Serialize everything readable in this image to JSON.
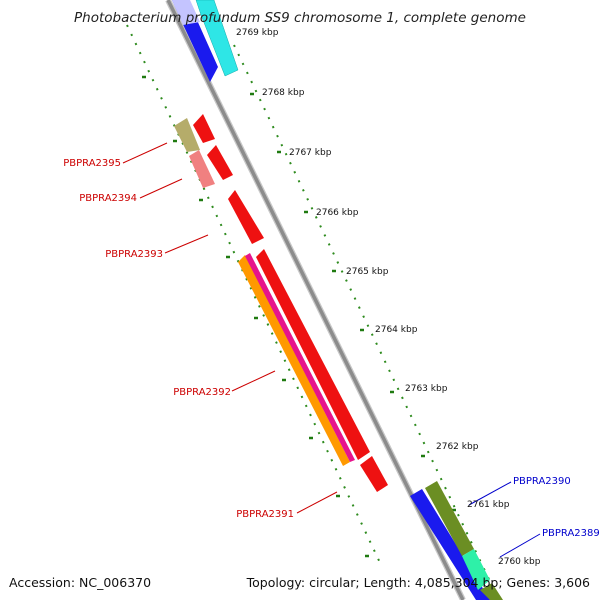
{
  "title": "Photobacterium profundum SS9 chromosome 1, complete genome",
  "accession": "Accession: NC_006370",
  "summary": "Topology: circular; Length: 4,085,304 bp; Genes: 3,606",
  "colors": {
    "backbone": "#8c8c8c",
    "tick_minor": "#2e8b1e",
    "tick_major": "#1f7a10",
    "label_left": "#cc0000",
    "label_right": "#0000cc"
  },
  "ruler": [
    {
      "label": "2769 kbp"
    },
    {
      "label": "2768 kbp"
    },
    {
      "label": "2767 kbp"
    },
    {
      "label": "2766 kbp"
    },
    {
      "label": "2765 kbp"
    },
    {
      "label": "2764 kbp"
    },
    {
      "label": "2763 kbp"
    },
    {
      "label": "2762 kbp"
    },
    {
      "label": "2761 kbp"
    },
    {
      "label": "2760 kbp"
    }
  ],
  "gene_labels": [
    {
      "id": "PBPRA2395",
      "text": "PBPRA2395",
      "side": "left"
    },
    {
      "id": "PBPRA2394",
      "text": "PBPRA2394",
      "side": "left"
    },
    {
      "id": "PBPRA2393",
      "text": "PBPRA2393",
      "side": "left"
    },
    {
      "id": "PBPRA2392",
      "text": "PBPRA2392",
      "side": "left"
    },
    {
      "id": "PBPRA2391",
      "text": "PBPRA2391",
      "side": "left"
    },
    {
      "id": "PBPRA2390",
      "text": "PBPRA2390",
      "side": "right"
    },
    {
      "id": "PBPRA2389",
      "text": "PBPRA2389",
      "side": "right"
    }
  ]
}
